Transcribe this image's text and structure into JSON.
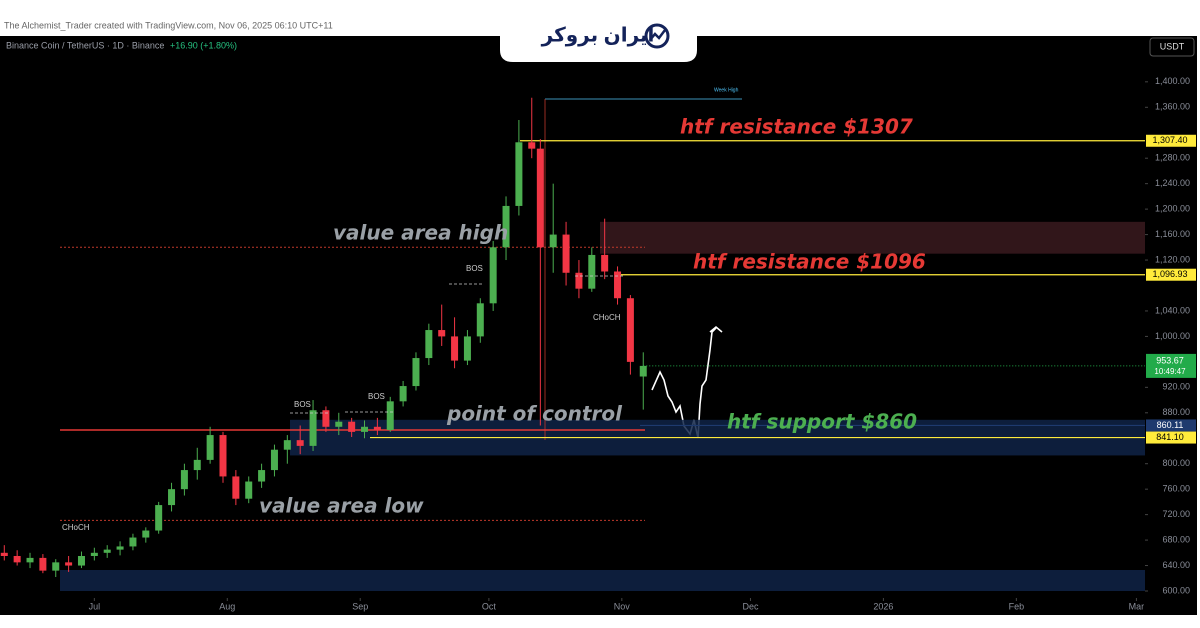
{
  "header": "The Alchemist_Trader created with TradingView.com, Nov 06, 2025 06:10 UTC+11",
  "logo": "ایران بروکر",
  "chart_data": {
    "type": "candlestick",
    "title": "Binance Coin / TetherUS · 1D · Binance",
    "change": "+16.90 (+1.80%)",
    "currency": "USDT",
    "up_color": "#4caf50",
    "down_color": "#f23645",
    "x": [
      -21,
      -18,
      -15,
      -12,
      -9,
      -6,
      -3,
      0,
      3,
      6,
      9,
      12,
      15,
      18,
      21,
      24,
      27,
      30,
      33,
      36,
      39,
      42,
      45,
      48,
      51,
      54,
      57,
      60,
      63,
      66,
      69,
      72,
      75,
      78,
      81,
      84,
      87,
      90,
      93,
      96,
      99,
      102,
      104,
      107,
      110,
      113,
      116,
      119,
      122,
      125,
      128
    ],
    "open": [
      660,
      655,
      645,
      652,
      632,
      645,
      640,
      655,
      660,
      665,
      670,
      684,
      695,
      735,
      760,
      790,
      806,
      845,
      780,
      745,
      772,
      790,
      822,
      837,
      828,
      884,
      858,
      866,
      850,
      858,
      853,
      898,
      922,
      966,
      1010,
      1000,
      962,
      1000,
      1052,
      1140,
      1205,
      1305,
      1295,
      1140,
      1160,
      1100,
      1075,
      1128,
      1102,
      1060,
      937
    ],
    "high": [
      672,
      664,
      660,
      658,
      650,
      655,
      662,
      668,
      672,
      678,
      690,
      700,
      740,
      770,
      800,
      825,
      858,
      850,
      790,
      780,
      800,
      830,
      845,
      860,
      900,
      890,
      880,
      872,
      868,
      872,
      905,
      930,
      975,
      1020,
      1050,
      1030,
      1010,
      1060,
      1150,
      1220,
      1340,
      1375,
      1310,
      1240,
      1180,
      1120,
      1140,
      1185,
      1110,
      1065,
      975
    ],
    "low": [
      648,
      640,
      636,
      628,
      622,
      630,
      636,
      648,
      652,
      656,
      664,
      676,
      690,
      725,
      750,
      775,
      800,
      770,
      735,
      738,
      762,
      780,
      800,
      815,
      820,
      850,
      845,
      842,
      840,
      845,
      850,
      890,
      915,
      955,
      985,
      950,
      955,
      990,
      1040,
      1120,
      1190,
      1280,
      860,
      1100,
      1080,
      1060,
      1070,
      1090,
      1050,
      940,
      885
    ],
    "close": [
      655,
      645,
      652,
      632,
      645,
      640,
      655,
      660,
      665,
      670,
      684,
      695,
      735,
      760,
      790,
      806,
      845,
      780,
      745,
      772,
      790,
      822,
      837,
      828,
      884,
      858,
      866,
      850,
      858,
      853,
      898,
      922,
      966,
      1010,
      1000,
      962,
      1000,
      1052,
      1140,
      1205,
      1305,
      1295,
      1140,
      1160,
      1100,
      1075,
      1128,
      1102,
      1060,
      960,
      953.67
    ],
    "xlim": [
      -22,
      245
    ],
    "xticks": [
      {
        "value": 0,
        "label": "Jul"
      },
      {
        "value": 31,
        "label": "Aug"
      },
      {
        "value": 62,
        "label": "Sep"
      },
      {
        "value": 92,
        "label": "Oct"
      },
      {
        "value": 123,
        "label": "Nov"
      },
      {
        "value": 153,
        "label": "Dec"
      },
      {
        "value": 184,
        "label": "2026"
      },
      {
        "value": 215,
        "label": "Feb"
      },
      {
        "value": 243,
        "label": "Mar"
      }
    ],
    "ylim": [
      589,
      1472
    ],
    "yticks": [
      {
        "value": 600,
        "label": "600.00"
      },
      {
        "value": 640,
        "label": "640.00"
      },
      {
        "value": 680,
        "label": "680.00"
      },
      {
        "value": 720,
        "label": "720.00"
      },
      {
        "value": 760,
        "label": "760.00"
      },
      {
        "value": 800,
        "label": "800.00"
      },
      {
        "value": 880,
        "label": "880.00"
      },
      {
        "value": 920,
        "label": "920.00"
      },
      {
        "value": 1000,
        "label": "1,000.00"
      },
      {
        "value": 1040,
        "label": "1,040.00"
      },
      {
        "value": 1120,
        "label": "1,120.00"
      },
      {
        "value": 1160,
        "label": "1,160.00"
      },
      {
        "value": 1200,
        "label": "1,200.00"
      },
      {
        "value": 1240,
        "label": "1,240.00"
      },
      {
        "value": 1280,
        "label": "1,280.00"
      },
      {
        "value": 1360,
        "label": "1,360.00"
      },
      {
        "value": 1400,
        "label": "1,400.00"
      }
    ],
    "levels": [
      {
        "value": 1307.4,
        "label": "1,307.40",
        "color": "#ffeb3b"
      },
      {
        "value": 1096.93,
        "label": "1,096.93",
        "color": "#ffeb3b"
      },
      {
        "value": 860.11,
        "label": "860.11",
        "color": "#1e3a6e"
      },
      {
        "value": 841.1,
        "label": "841.10",
        "color": "#ffeb3b"
      }
    ],
    "price_tag": {
      "value": 953.67,
      "label": "953.67",
      "timer": "10:49:47",
      "color": "#22ab4a"
    },
    "zones": [
      {
        "from": 1130,
        "to": 1180,
        "color": "#3a1a1f"
      },
      {
        "from": 813,
        "to": 869,
        "color": "#0f2346"
      },
      {
        "from": 600,
        "to": 633,
        "color": "#0f2346"
      }
    ],
    "annotations": [
      "htf resistance $1307",
      "value area high",
      "htf resistance $1096",
      "point of control",
      "htf support $860",
      "value area low",
      "BOS",
      "BOS",
      "BOS",
      "CHoCH",
      "CHoCH",
      "Week High"
    ]
  }
}
